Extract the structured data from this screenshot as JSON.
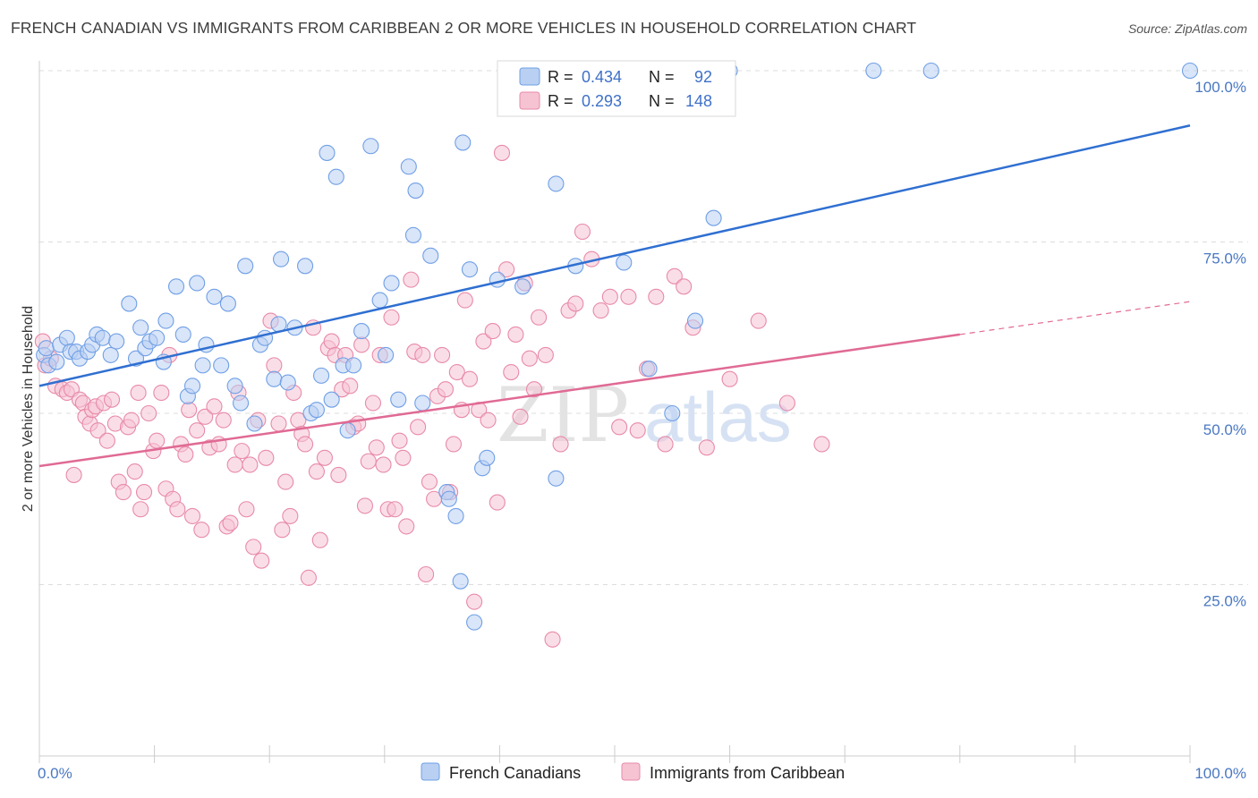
{
  "title": "FRENCH CANADIAN VS IMMIGRANTS FROM CARIBBEAN 2 OR MORE VEHICLES IN HOUSEHOLD CORRELATION CHART",
  "source": "Source: ZipAtlas.com",
  "watermark": {
    "zip": "ZIP",
    "atlas": "atlas"
  },
  "colors": {
    "blue": "#6f9fe6",
    "blue_fill": "#b9d0f2",
    "blue_line": "#2f6fd1",
    "pink": "#e88aa8",
    "pink_fill": "#f6c3d3",
    "pink_line": "#e06a94",
    "grid": "#dcdcdc",
    "tick_text": "#4a78c2"
  },
  "legend": {
    "rows": [
      {
        "r_label": "R =",
        "r_value": "0.434",
        "n_label": "N =",
        "n_value": "92"
      },
      {
        "r_label": "R =",
        "r_value": "0.293",
        "n_label": "N =",
        "n_value": "148"
      }
    ]
  },
  "bottom_legend": [
    "French Canadians",
    "Immigrants from Caribbean"
  ],
  "chart_data": {
    "type": "scatter",
    "title": "FRENCH CANADIAN VS IMMIGRANTS FROM CARIBBEAN 2 OR MORE VEHICLES IN HOUSEHOLD CORRELATION CHART",
    "xlabel": "",
    "ylabel": "2 or more Vehicles in Household",
    "xlim": [
      0,
      100
    ],
    "ylim": [
      0,
      100
    ],
    "x_tick_labels": [
      "0.0%",
      "100.0%"
    ],
    "y_ticks": [
      25,
      50,
      75,
      100
    ],
    "y_tick_labels": [
      "25.0%",
      "50.0%",
      "75.0%",
      "100.0%"
    ],
    "grid": true,
    "legend_position": "top-center",
    "series": [
      {
        "name": "French Canadians",
        "R": 0.434,
        "N": 92,
        "trend": {
          "x": [
            0,
            100
          ],
          "y": [
            54.0,
            92.0
          ]
        },
        "points": [
          [
            0.4,
            58.5
          ],
          [
            0.6,
            59.5
          ],
          [
            0.8,
            57.0
          ],
          [
            1.5,
            57.5
          ],
          [
            1.8,
            60.0
          ],
          [
            2.4,
            61.0
          ],
          [
            2.7,
            59.0
          ],
          [
            3.2,
            59.0
          ],
          [
            3.5,
            58.0
          ],
          [
            4.2,
            59.0
          ],
          [
            4.6,
            60.0
          ],
          [
            5.0,
            61.5
          ],
          [
            5.5,
            61.0
          ],
          [
            6.2,
            58.5
          ],
          [
            6.7,
            60.5
          ],
          [
            7.8,
            66.0
          ],
          [
            8.4,
            58.0
          ],
          [
            8.8,
            62.5
          ],
          [
            9.2,
            59.5
          ],
          [
            9.6,
            60.5
          ],
          [
            10.2,
            61.0
          ],
          [
            10.8,
            57.5
          ],
          [
            11.0,
            63.5
          ],
          [
            11.9,
            68.5
          ],
          [
            12.5,
            61.5
          ],
          [
            12.9,
            52.5
          ],
          [
            13.3,
            54.0
          ],
          [
            13.7,
            69.0
          ],
          [
            14.2,
            57.0
          ],
          [
            14.5,
            60.0
          ],
          [
            15.2,
            67.0
          ],
          [
            15.8,
            57.0
          ],
          [
            16.4,
            66.0
          ],
          [
            17.0,
            54.0
          ],
          [
            17.5,
            51.5
          ],
          [
            17.9,
            71.5
          ],
          [
            18.7,
            48.5
          ],
          [
            19.2,
            60.0
          ],
          [
            19.6,
            61.0
          ],
          [
            20.4,
            55.0
          ],
          [
            20.8,
            63.0
          ],
          [
            21.0,
            72.5
          ],
          [
            21.6,
            54.5
          ],
          [
            22.2,
            62.5
          ],
          [
            23.1,
            71.5
          ],
          [
            23.6,
            50.0
          ],
          [
            24.1,
            50.5
          ],
          [
            24.5,
            55.5
          ],
          [
            25.0,
            88.0
          ],
          [
            25.4,
            52.0
          ],
          [
            25.8,
            84.5
          ],
          [
            26.4,
            57.0
          ],
          [
            26.8,
            47.5
          ],
          [
            27.3,
            57.0
          ],
          [
            28.0,
            62.0
          ],
          [
            28.8,
            89.0
          ],
          [
            29.6,
            66.5
          ],
          [
            30.1,
            58.5
          ],
          [
            30.6,
            69.0
          ],
          [
            31.2,
            52.0
          ],
          [
            32.1,
            86.0
          ],
          [
            32.5,
            76.0
          ],
          [
            32.7,
            82.5
          ],
          [
            33.3,
            51.5
          ],
          [
            34.0,
            73.0
          ],
          [
            35.4,
            38.5
          ],
          [
            35.6,
            37.5
          ],
          [
            36.2,
            35.0
          ],
          [
            36.6,
            25.5
          ],
          [
            36.8,
            89.5
          ],
          [
            37.4,
            71.0
          ],
          [
            37.8,
            19.5
          ],
          [
            38.5,
            42.0
          ],
          [
            38.9,
            43.5
          ],
          [
            39.8,
            69.5
          ],
          [
            42.0,
            68.5
          ],
          [
            44.9,
            40.5
          ],
          [
            44.9,
            83.5
          ],
          [
            46.6,
            71.5
          ],
          [
            49.0,
            100.0
          ],
          [
            50.5,
            100.0
          ],
          [
            50.8,
            72.0
          ],
          [
            53.0,
            56.5
          ],
          [
            55.0,
            50.0
          ],
          [
            57.0,
            63.5
          ],
          [
            58.6,
            78.5
          ],
          [
            60.0,
            100.0
          ],
          [
            72.5,
            100.0
          ],
          [
            77.5,
            100.0
          ],
          [
            100.0,
            100.0
          ],
          [
            46.5,
            100.0
          ],
          [
            48.0,
            100.0
          ]
        ]
      },
      {
        "name": "Immigrants from Caribbean",
        "R": 0.293,
        "N": 148,
        "trend": {
          "x": [
            0,
            80
          ],
          "y": [
            42.3,
            61.5
          ]
        },
        "trend_dashed": {
          "x": [
            80,
            100
          ],
          "y": [
            61.5,
            66.3
          ]
        },
        "points": [
          [
            0.3,
            60.5
          ],
          [
            0.5,
            57.0
          ],
          [
            1.0,
            58.0
          ],
          [
            1.4,
            54.0
          ],
          [
            2.0,
            53.5
          ],
          [
            2.4,
            53.0
          ],
          [
            2.8,
            53.5
          ],
          [
            3.0,
            41.0
          ],
          [
            3.5,
            52.0
          ],
          [
            3.8,
            51.5
          ],
          [
            4.0,
            49.5
          ],
          [
            4.4,
            48.5
          ],
          [
            4.6,
            50.5
          ],
          [
            4.9,
            51.0
          ],
          [
            5.1,
            47.5
          ],
          [
            5.6,
            51.5
          ],
          [
            5.9,
            46.0
          ],
          [
            6.3,
            52.0
          ],
          [
            6.6,
            48.5
          ],
          [
            6.9,
            40.0
          ],
          [
            7.3,
            38.5
          ],
          [
            7.7,
            48.0
          ],
          [
            8.0,
            49.0
          ],
          [
            8.3,
            41.5
          ],
          [
            8.6,
            53.0
          ],
          [
            8.8,
            36.0
          ],
          [
            9.1,
            38.5
          ],
          [
            9.5,
            50.0
          ],
          [
            9.9,
            44.5
          ],
          [
            10.2,
            46.0
          ],
          [
            10.6,
            53.0
          ],
          [
            11.0,
            39.0
          ],
          [
            11.3,
            58.5
          ],
          [
            11.6,
            37.5
          ],
          [
            12.0,
            36.0
          ],
          [
            12.3,
            45.5
          ],
          [
            12.7,
            44.0
          ],
          [
            13.0,
            50.5
          ],
          [
            13.3,
            35.0
          ],
          [
            13.7,
            47.5
          ],
          [
            14.1,
            33.0
          ],
          [
            14.4,
            49.5
          ],
          [
            14.8,
            45.0
          ],
          [
            15.2,
            51.0
          ],
          [
            15.6,
            45.5
          ],
          [
            16.0,
            49.0
          ],
          [
            16.3,
            33.5
          ],
          [
            16.6,
            34.0
          ],
          [
            17.0,
            42.5
          ],
          [
            17.3,
            53.0
          ],
          [
            17.6,
            44.5
          ],
          [
            18.0,
            36.0
          ],
          [
            18.3,
            42.5
          ],
          [
            18.6,
            30.5
          ],
          [
            19.0,
            49.0
          ],
          [
            19.3,
            28.5
          ],
          [
            19.7,
            43.5
          ],
          [
            20.1,
            63.5
          ],
          [
            20.4,
            57.0
          ],
          [
            20.8,
            48.5
          ],
          [
            21.1,
            33.0
          ],
          [
            21.4,
            40.0
          ],
          [
            21.8,
            35.0
          ],
          [
            22.1,
            53.0
          ],
          [
            22.5,
            49.0
          ],
          [
            22.8,
            47.0
          ],
          [
            23.1,
            45.5
          ],
          [
            23.4,
            26.0
          ],
          [
            23.8,
            62.5
          ],
          [
            24.1,
            41.5
          ],
          [
            24.4,
            31.5
          ],
          [
            24.8,
            43.5
          ],
          [
            25.1,
            59.5
          ],
          [
            25.4,
            60.5
          ],
          [
            25.7,
            58.5
          ],
          [
            26.0,
            41.0
          ],
          [
            26.3,
            53.5
          ],
          [
            26.6,
            58.5
          ],
          [
            27.0,
            54.0
          ],
          [
            27.3,
            48.0
          ],
          [
            27.7,
            48.5
          ],
          [
            28.0,
            60.0
          ],
          [
            28.3,
            36.5
          ],
          [
            28.6,
            43.0
          ],
          [
            29.0,
            51.5
          ],
          [
            29.3,
            45.0
          ],
          [
            29.6,
            58.5
          ],
          [
            29.9,
            42.5
          ],
          [
            30.3,
            36.0
          ],
          [
            30.6,
            64.0
          ],
          [
            30.9,
            36.0
          ],
          [
            31.3,
            46.0
          ],
          [
            31.6,
            43.5
          ],
          [
            31.9,
            33.5
          ],
          [
            32.3,
            69.5
          ],
          [
            32.6,
            59.0
          ],
          [
            32.9,
            48.0
          ],
          [
            33.3,
            58.5
          ],
          [
            33.6,
            26.5
          ],
          [
            33.9,
            40.0
          ],
          [
            34.3,
            37.5
          ],
          [
            34.6,
            52.5
          ],
          [
            35.0,
            58.5
          ],
          [
            35.3,
            53.5
          ],
          [
            35.7,
            38.5
          ],
          [
            36.0,
            45.5
          ],
          [
            36.3,
            56.0
          ],
          [
            36.7,
            50.5
          ],
          [
            37.0,
            66.5
          ],
          [
            37.4,
            55.0
          ],
          [
            37.8,
            22.5
          ],
          [
            38.2,
            50.5
          ],
          [
            38.6,
            60.5
          ],
          [
            39.0,
            49.0
          ],
          [
            39.4,
            62.0
          ],
          [
            39.8,
            37.0
          ],
          [
            40.2,
            88.0
          ],
          [
            40.6,
            71.0
          ],
          [
            41.0,
            56.0
          ],
          [
            41.4,
            61.5
          ],
          [
            41.8,
            49.5
          ],
          [
            42.2,
            69.0
          ],
          [
            42.6,
            58.0
          ],
          [
            43.0,
            53.5
          ],
          [
            43.4,
            64.0
          ],
          [
            44.0,
            58.5
          ],
          [
            44.6,
            17.0
          ],
          [
            45.3,
            45.5
          ],
          [
            46.0,
            65.0
          ],
          [
            46.6,
            66.0
          ],
          [
            47.2,
            76.5
          ],
          [
            48.0,
            72.5
          ],
          [
            48.8,
            65.0
          ],
          [
            49.6,
            67.0
          ],
          [
            50.4,
            48.0
          ],
          [
            51.2,
            67.0
          ],
          [
            52.0,
            47.5
          ],
          [
            52.8,
            56.5
          ],
          [
            53.6,
            67.0
          ],
          [
            54.4,
            45.5
          ],
          [
            55.2,
            70.0
          ],
          [
            56.0,
            68.5
          ],
          [
            56.8,
            62.5
          ],
          [
            58.0,
            45.0
          ],
          [
            60.0,
            55.0
          ],
          [
            62.5,
            63.5
          ],
          [
            65.0,
            51.5
          ],
          [
            68.0,
            45.5
          ]
        ]
      }
    ]
  }
}
